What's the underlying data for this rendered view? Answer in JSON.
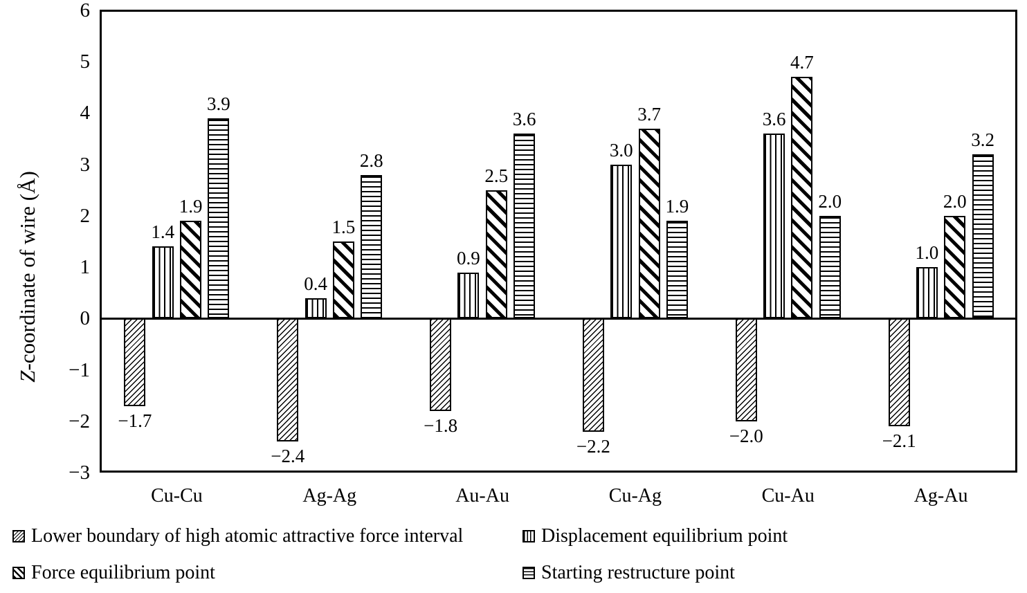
{
  "chart_data": {
    "type": "bar",
    "title": "",
    "ylabel": "Z-coordinate of wire (Å)",
    "ylabel_italic_prefix": "Z",
    "ylabel_rest": "-coordinate of wire (Å)",
    "categories": [
      "Cu-Cu",
      "Ag-Ag",
      "Au-Au",
      "Cu-Ag",
      "Cu-Au",
      "Ag-Au"
    ],
    "series": [
      {
        "name": "Lower boundary of high atomic attractive force interval",
        "pattern": "thin-forward-diagonal-hatch",
        "values": [
          -1.7,
          -2.4,
          -1.8,
          -2.2,
          -2.0,
          -2.1
        ]
      },
      {
        "name": "Displacement equilibrium point",
        "pattern": "vertical-line-hatch",
        "values": [
          1.4,
          0.4,
          0.9,
          3.0,
          3.6,
          1.0
        ]
      },
      {
        "name": "Force equilibrium point",
        "pattern": "thick-backward-diagonal-hatch",
        "values": [
          1.9,
          1.5,
          2.5,
          3.7,
          4.7,
          2.0
        ]
      },
      {
        "name": "Starting restructure point",
        "pattern": "horizontal-line-hatch",
        "values": [
          3.9,
          2.8,
          3.6,
          1.9,
          2.0,
          3.2
        ]
      }
    ],
    "ylim": [
      -3,
      6
    ],
    "yticks": [
      6,
      5,
      4,
      3,
      2,
      1,
      0,
      -1,
      -2,
      -3
    ],
    "grid": false,
    "data_labels_decimals": 1,
    "legend_position": "bottom-two-columns",
    "bar_outline_color": "#000000",
    "background_color": "#ffffff",
    "text_color": "#000000"
  }
}
